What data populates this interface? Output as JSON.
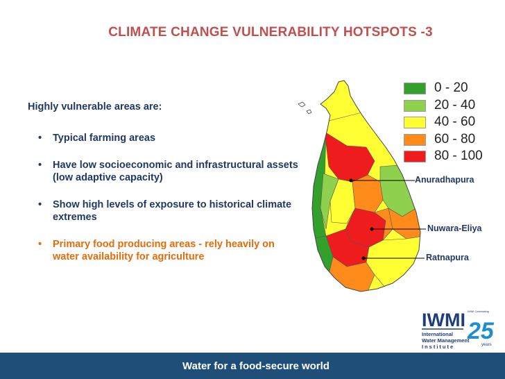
{
  "slide": {
    "title": "CLIMATE CHANGE VULNERABILITY HOTSPOTS -3",
    "intro": "Highly vulnerable areas are:",
    "bullets": [
      "Typical farming areas",
      "Have low socioeconomic and infrastructural assets (low adaptive capacity)",
      "Show high levels of exposure to historical climate extremes",
      "Primary food producing areas - rely heavily on water availability for agriculture"
    ],
    "bullet_symbol": "•",
    "footer": "Water for a food-secure world"
  },
  "legend": [
    {
      "label": "0 - 20",
      "color": "#33a02c"
    },
    {
      "label": "20 - 40",
      "color": "#8fd14f"
    },
    {
      "label": "40 - 60",
      "color": "#ffff33"
    },
    {
      "label": "60 - 80",
      "color": "#ff8c1a"
    },
    {
      "label": "80 - 100",
      "color": "#ee1c1c"
    }
  ],
  "places": {
    "anuradhapura": "Anuradhapura",
    "nuwara_eliya": "Nuwara-Eliya",
    "ratnapura": "Ratnapura"
  },
  "logo": {
    "name": "IWMI",
    "line1": "International",
    "line2": "Water Management",
    "line3": "Institute",
    "anniversary_number": "25",
    "anniversary_word": "years",
    "celebrating": "IWMI Celebrating"
  },
  "colors": {
    "title": "#c0504d",
    "text": "#1f3864",
    "highlight": "#e46c0a",
    "footer_bg": "#1f4e79"
  }
}
